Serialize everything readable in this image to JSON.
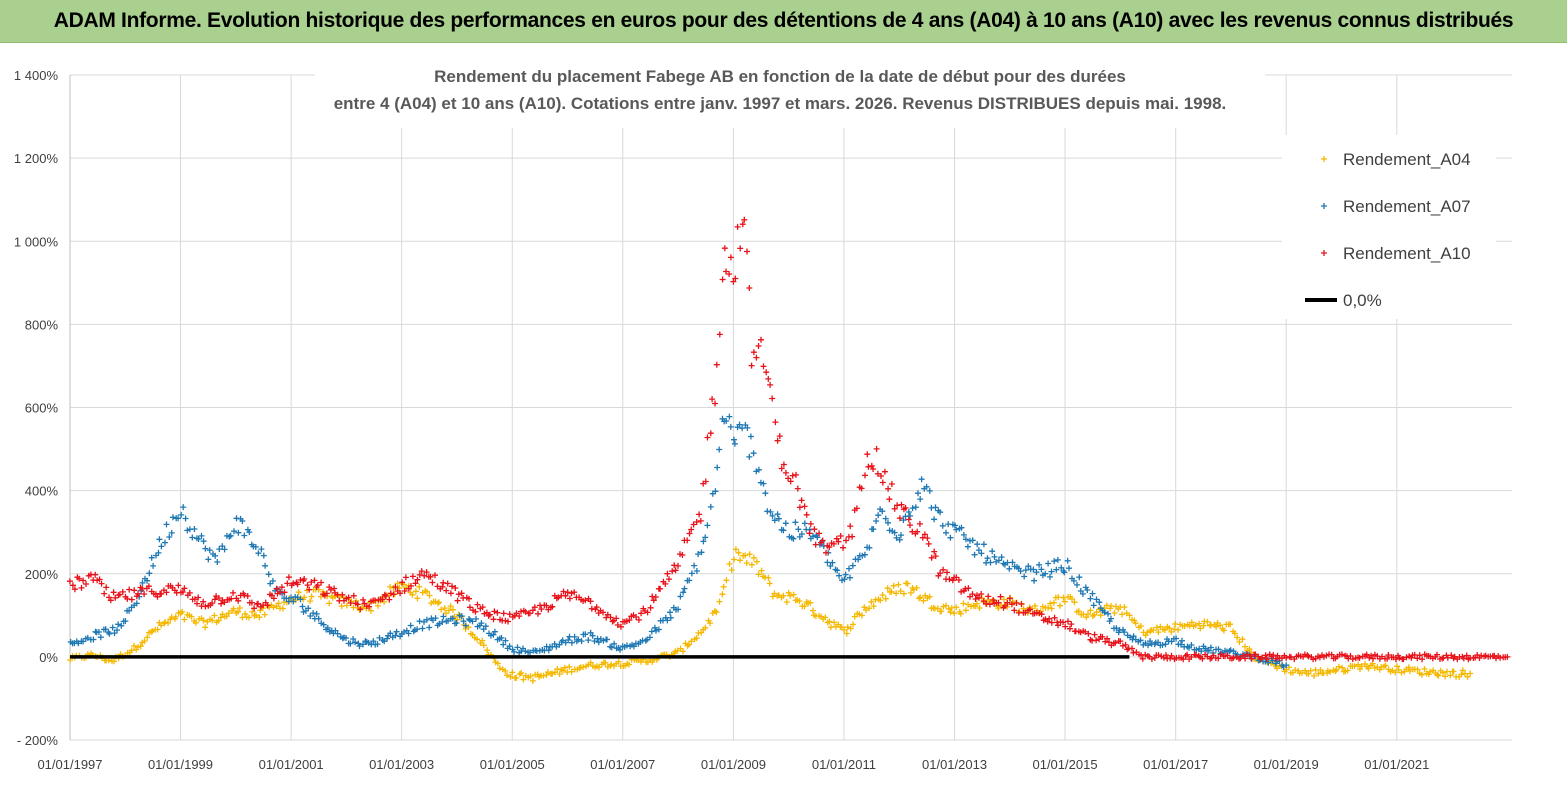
{
  "banner": {
    "title": "ADAM Informe. Evolution historique des performances en euros pour des détentions de 4 ans (A04) à 10 ans (A10) avec les revenus connus distribués"
  },
  "colors": {
    "banner_bg": "#a9d08e",
    "A04": "#f5b800",
    "A07": "#1f78b4",
    "A10": "#e8121a",
    "zero_line": "#000000",
    "grid": "#d9d9d9"
  },
  "chart_data": {
    "type": "scatter",
    "title_line1": "Rendement du placement Fabege AB en fonction de la date de début pour des durées",
    "title_line2": "entre 4 (A04) et 10 ans (A10). Cotations entre janv. 1997 et mars. 2026. Revenus DISTRIBUES depuis mai. 1998.",
    "x_axis": {
      "type": "date",
      "range": [
        "1997-01-01",
        "2023-02-01"
      ],
      "tick_labels": [
        "01/01/1997",
        "01/01/1999",
        "01/01/2001",
        "01/01/2003",
        "01/01/2005",
        "01/01/2007",
        "01/01/2009",
        "01/01/2011",
        "01/01/2013",
        "01/01/2015",
        "01/01/2017",
        "01/01/2019",
        "01/01/2021"
      ]
    },
    "y_axis": {
      "range": [
        -200,
        1400
      ],
      "unit": "%",
      "tick_labels": [
        "- 200%",
        "0%",
        "200%",
        "400%",
        "600%",
        "800%",
        "1 000%",
        "1 200%",
        "1 400%"
      ]
    },
    "grid": true,
    "legend_position": "top-right",
    "legend": [
      "Rendement_A04",
      "Rendement_A07",
      "Rendement_A10",
      "0,0%"
    ],
    "series": [
      {
        "name": "Rendement_A04",
        "marker": "plus",
        "color": "#f5b800",
        "points": [
          [
            "1997-01-01",
            -5
          ],
          [
            "1997-06-01",
            5
          ],
          [
            "1997-10-01",
            -10
          ],
          [
            "1998-03-01",
            20
          ],
          [
            "1998-08-01",
            70
          ],
          [
            "1999-01-01",
            100
          ],
          [
            "1999-06-01",
            80
          ],
          [
            "2000-01-01",
            110
          ],
          [
            "2000-06-01",
            100
          ],
          [
            "2001-01-01",
            140
          ],
          [
            "2001-06-01",
            150
          ],
          [
            "2002-01-01",
            130
          ],
          [
            "2002-06-01",
            120
          ],
          [
            "2003-01-01",
            170
          ],
          [
            "2003-06-01",
            150
          ],
          [
            "2004-01-01",
            100
          ],
          [
            "2004-06-01",
            40
          ],
          [
            "2004-10-01",
            -20
          ],
          [
            "2005-01-01",
            -45
          ],
          [
            "2005-06-01",
            -50
          ],
          [
            "2006-01-01",
            -30
          ],
          [
            "2006-06-01",
            -20
          ],
          [
            "2007-01-01",
            -15
          ],
          [
            "2007-06-01",
            -10
          ],
          [
            "2008-01-01",
            10
          ],
          [
            "2008-06-01",
            60
          ],
          [
            "2008-10-01",
            120
          ],
          [
            "2009-01-01",
            250
          ],
          [
            "2009-06-01",
            220
          ],
          [
            "2009-10-01",
            150
          ],
          [
            "2010-03-01",
            140
          ],
          [
            "2010-08-01",
            100
          ],
          [
            "2011-01-01",
            60
          ],
          [
            "2011-06-01",
            120
          ],
          [
            "2011-10-01",
            150
          ],
          [
            "2012-03-01",
            170
          ],
          [
            "2012-08-01",
            130
          ],
          [
            "2013-01-01",
            110
          ],
          [
            "2013-06-01",
            130
          ],
          [
            "2014-01-01",
            130
          ],
          [
            "2014-06-01",
            110
          ],
          [
            "2015-01-01",
            140
          ],
          [
            "2015-06-01",
            100
          ],
          [
            "2016-01-01",
            120
          ],
          [
            "2016-06-01",
            60
          ],
          [
            "2017-01-01",
            70
          ],
          [
            "2017-06-01",
            80
          ],
          [
            "2018-01-01",
            70
          ],
          [
            "2018-06-01",
            0
          ],
          [
            "2019-01-01",
            -30
          ],
          [
            "2019-06-01",
            -40
          ],
          [
            "2020-01-01",
            -30
          ],
          [
            "2020-06-01",
            -20
          ],
          [
            "2021-01-01",
            -30
          ],
          [
            "2021-06-01",
            -35
          ],
          [
            "2022-01-01",
            -40
          ],
          [
            "2022-05-01",
            -40
          ]
        ]
      },
      {
        "name": "Rendement_A07",
        "marker": "plus",
        "color": "#1f78b4",
        "points": [
          [
            "1997-01-01",
            30
          ],
          [
            "1997-06-01",
            50
          ],
          [
            "1997-12-01",
            70
          ],
          [
            "1998-04-01",
            150
          ],
          [
            "1998-09-01",
            280
          ],
          [
            "1999-01-01",
            360
          ],
          [
            "1999-05-01",
            280
          ],
          [
            "1999-09-01",
            230
          ],
          [
            "2000-01-01",
            330
          ],
          [
            "2000-06-01",
            260
          ],
          [
            "2000-10-01",
            150
          ],
          [
            "2001-03-01",
            130
          ],
          [
            "2001-08-01",
            80
          ],
          [
            "2002-01-01",
            40
          ],
          [
            "2002-06-01",
            30
          ],
          [
            "2003-01-01",
            60
          ],
          [
            "2003-06-01",
            80
          ],
          [
            "2004-01-01",
            90
          ],
          [
            "2004-06-01",
            80
          ],
          [
            "2005-01-01",
            20
          ],
          [
            "2005-06-01",
            10
          ],
          [
            "2006-01-01",
            40
          ],
          [
            "2006-06-01",
            50
          ],
          [
            "2007-01-01",
            20
          ],
          [
            "2007-06-01",
            40
          ],
          [
            "2008-01-01",
            120
          ],
          [
            "2008-06-01",
            250
          ],
          [
            "2008-09-01",
            400
          ],
          [
            "2008-11-01",
            600
          ],
          [
            "2009-01-01",
            500
          ],
          [
            "2009-03-01",
            550
          ],
          [
            "2009-06-01",
            480
          ],
          [
            "2009-09-01",
            350
          ],
          [
            "2010-01-01",
            300
          ],
          [
            "2010-06-01",
            300
          ],
          [
            "2011-01-01",
            180
          ],
          [
            "2011-06-01",
            260
          ],
          [
            "2011-09-01",
            350
          ],
          [
            "2012-01-01",
            300
          ],
          [
            "2012-06-01",
            420
          ],
          [
            "2012-09-01",
            340
          ],
          [
            "2013-01-01",
            300
          ],
          [
            "2013-06-01",
            260
          ],
          [
            "2014-01-01",
            210
          ],
          [
            "2014-06-01",
            200
          ],
          [
            "2015-01-01",
            220
          ],
          [
            "2015-06-01",
            150
          ],
          [
            "2016-01-01",
            60
          ],
          [
            "2016-06-01",
            30
          ],
          [
            "2017-01-01",
            40
          ],
          [
            "2017-06-01",
            20
          ],
          [
            "2018-01-01",
            10
          ],
          [
            "2018-06-01",
            0
          ],
          [
            "2019-01-01",
            -20
          ]
        ]
      },
      {
        "name": "Rendement_A10",
        "marker": "plus",
        "color": "#e8121a",
        "points": [
          [
            "1997-01-01",
            170
          ],
          [
            "1997-06-01",
            190
          ],
          [
            "1997-10-01",
            140
          ],
          [
            "1998-03-01",
            150
          ],
          [
            "1998-08-01",
            160
          ],
          [
            "1999-01-01",
            160
          ],
          [
            "1999-06-01",
            130
          ],
          [
            "2000-01-01",
            150
          ],
          [
            "2000-06-01",
            120
          ],
          [
            "2001-01-01",
            180
          ],
          [
            "2001-06-01",
            170
          ],
          [
            "2002-01-01",
            140
          ],
          [
            "2002-06-01",
            120
          ],
          [
            "2003-01-01",
            170
          ],
          [
            "2003-06-01",
            200
          ],
          [
            "2004-01-01",
            150
          ],
          [
            "2004-06-01",
            110
          ],
          [
            "2005-01-01",
            90
          ],
          [
            "2005-06-01",
            110
          ],
          [
            "2006-01-01",
            150
          ],
          [
            "2006-06-01",
            130
          ],
          [
            "2007-01-01",
            80
          ],
          [
            "2007-06-01",
            110
          ],
          [
            "2008-01-01",
            220
          ],
          [
            "2008-06-01",
            350
          ],
          [
            "2008-09-01",
            650
          ],
          [
            "2008-11-01",
            1000
          ],
          [
            "2009-01-01",
            900
          ],
          [
            "2009-03-01",
            1100
          ],
          [
            "2009-05-01",
            750
          ],
          [
            "2009-08-01",
            700
          ],
          [
            "2009-11-01",
            500
          ],
          [
            "2010-03-01",
            400
          ],
          [
            "2010-06-01",
            300
          ],
          [
            "2010-10-01",
            250
          ],
          [
            "2011-03-01",
            300
          ],
          [
            "2011-06-01",
            500
          ],
          [
            "2011-09-01",
            450
          ],
          [
            "2012-01-01",
            350
          ],
          [
            "2012-06-01",
            300
          ],
          [
            "2012-10-01",
            200
          ],
          [
            "2013-01-01",
            180
          ],
          [
            "2013-06-01",
            140
          ],
          [
            "2014-01-01",
            130
          ],
          [
            "2014-06-01",
            100
          ],
          [
            "2015-01-01",
            80
          ],
          [
            "2015-06-01",
            50
          ],
          [
            "2016-01-01",
            30
          ],
          [
            "2016-06-01",
            0
          ],
          [
            "2017-06-01",
            0
          ],
          [
            "2018-06-01",
            0
          ],
          [
            "2019-06-01",
            0
          ],
          [
            "2020-06-01",
            0
          ],
          [
            "2021-06-01",
            0
          ],
          [
            "2022-06-01",
            0
          ],
          [
            "2023-01-01",
            0
          ]
        ]
      },
      {
        "name": "0,0%",
        "marker": "line",
        "color": "#000000",
        "points": [
          [
            "1997-01-01",
            0
          ],
          [
            "2016-03-01",
            0
          ]
        ]
      }
    ]
  }
}
